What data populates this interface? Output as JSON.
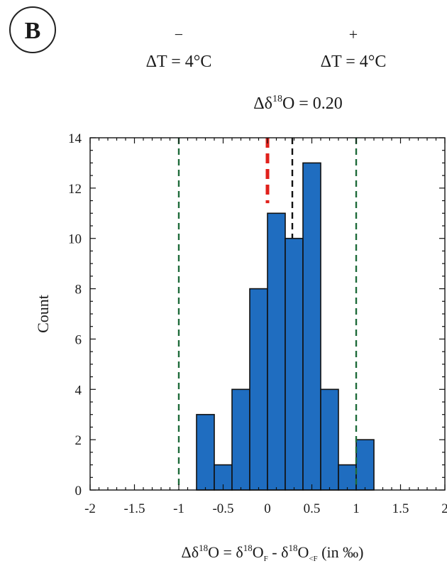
{
  "panel_label": "B",
  "annotations": {
    "left_sign": "−",
    "left_text": "ΔT = 4°C",
    "right_sign": "+",
    "right_text": "ΔT = 4°C",
    "stat_prefix": "Δδ",
    "stat_sup": "18",
    "stat_suffix": "O  = 0.20"
  },
  "chart_data": {
    "type": "bar",
    "subtype": "histogram",
    "bins": [
      {
        "x0": -0.8,
        "x1": -0.6,
        "count": 3
      },
      {
        "x0": -0.6,
        "x1": -0.4,
        "count": 1
      },
      {
        "x0": -0.4,
        "x1": -0.2,
        "count": 4
      },
      {
        "x0": -0.2,
        "x1": 0.0,
        "count": 8
      },
      {
        "x0": 0.0,
        "x1": 0.2,
        "count": 11
      },
      {
        "x0": 0.2,
        "x1": 0.4,
        "count": 10
      },
      {
        "x0": 0.4,
        "x1": 0.6,
        "count": 13
      },
      {
        "x0": 0.6,
        "x1": 0.8,
        "count": 4
      },
      {
        "x0": 0.8,
        "x1": 1.0,
        "count": 1
      },
      {
        "x0": 1.0,
        "x1": 1.2,
        "count": 2
      }
    ],
    "xlim": [
      -2,
      2
    ],
    "ylim": [
      0,
      14
    ],
    "xticks": [
      -2,
      -1.5,
      -1,
      -0.5,
      0,
      0.5,
      1,
      1.5,
      2
    ],
    "xtick_labels": [
      "-2",
      "-1.5",
      "-1",
      "-0.5",
      "0",
      "0.5",
      "1",
      "1.5",
      "2"
    ],
    "yticks": [
      0,
      2,
      4,
      6,
      8,
      10,
      12,
      14
    ],
    "ytick_labels": [
      "0",
      "2",
      "4",
      "6",
      "8",
      "10",
      "12",
      "14"
    ],
    "ylabel": "Count",
    "xlabel_parts": {
      "a": "Δδ",
      "a_sup": "18",
      "b": "O = δ",
      "b_sup": "18",
      "c": "O",
      "c_sub": "F",
      "d": "  -  δ",
      "d_sup": "18",
      "e": "O",
      "e_sub": "<F",
      "f": "  (in ‰)"
    },
    "reference_lines": [
      {
        "x": -1.0,
        "color": "#1e6b3a",
        "style": "dashed"
      },
      {
        "x": 1.0,
        "color": "#1e6b3a",
        "style": "dashed"
      },
      {
        "x": 0.0,
        "color": "#e0201b",
        "style": "dashed"
      },
      {
        "x": 0.28,
        "color": "#111111",
        "style": "dashed"
      }
    ],
    "bar_color": "#1f6dc0",
    "bar_edge": "#111111",
    "grid": false
  }
}
